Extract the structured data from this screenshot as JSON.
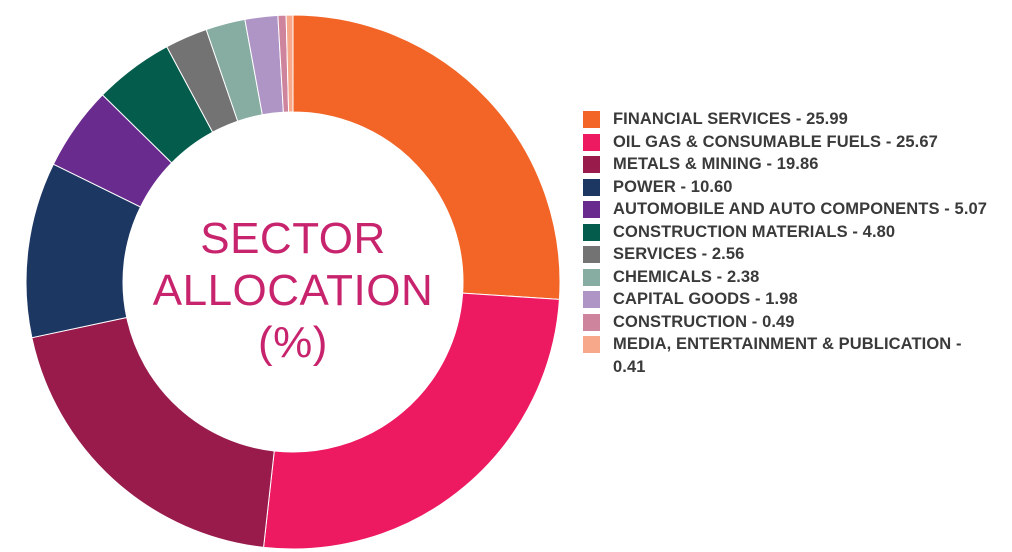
{
  "chart_data": {
    "type": "pie",
    "title": "SECTOR ALLOCATION (%)",
    "title_lines": [
      "SECTOR",
      "ALLOCATION",
      "(%)"
    ],
    "legend_position": "right",
    "series": [
      {
        "label": "FINANCIAL SERVICES - 25.99",
        "name": "FINANCIAL SERVICES",
        "value": 25.99,
        "color": "#f26527"
      },
      {
        "label": "OIL GAS & CONSUMABLE FUELS - 25.67",
        "name": "OIL GAS & CONSUMABLE FUELS",
        "value": 25.67,
        "color": "#ed1a62"
      },
      {
        "label": "METALS & MINING - 19.86",
        "name": "METALS & MINING",
        "value": 19.86,
        "color": "#981b4c"
      },
      {
        "label": "POWER - 10.60",
        "name": "POWER",
        "value": 10.6,
        "color": "#1d3763"
      },
      {
        "label": "AUTOMOBILE AND AUTO COMPONENTS - 5.07",
        "name": "AUTOMOBILE AND AUTO COMPONENTS",
        "value": 5.07,
        "color": "#6a2b8e"
      },
      {
        "label": "CONSTRUCTION MATERIALS - 4.80",
        "name": "CONSTRUCTION MATERIALS",
        "value": 4.8,
        "color": "#045d4c"
      },
      {
        "label": "SERVICES - 2.56",
        "name": "SERVICES",
        "value": 2.56,
        "color": "#737373"
      },
      {
        "label": "CHEMICALS - 2.38",
        "name": "CHEMICALS",
        "value": 2.38,
        "color": "#87ada3"
      },
      {
        "label": "CAPITAL GOODS - 1.98",
        "name": "CAPITAL GOODS",
        "value": 1.98,
        "color": "#af94c6"
      },
      {
        "label": "CONSTRUCTION - 0.49",
        "name": "CONSTRUCTION",
        "value": 0.49,
        "color": "#ce849c"
      },
      {
        "label": "MEDIA, ENTERTAINMENT & PUBLICATION - 0.41",
        "name": "MEDIA, ENTERTAINMENT & PUBLICATION",
        "value": 0.41,
        "color": "#f8a88a"
      }
    ]
  }
}
